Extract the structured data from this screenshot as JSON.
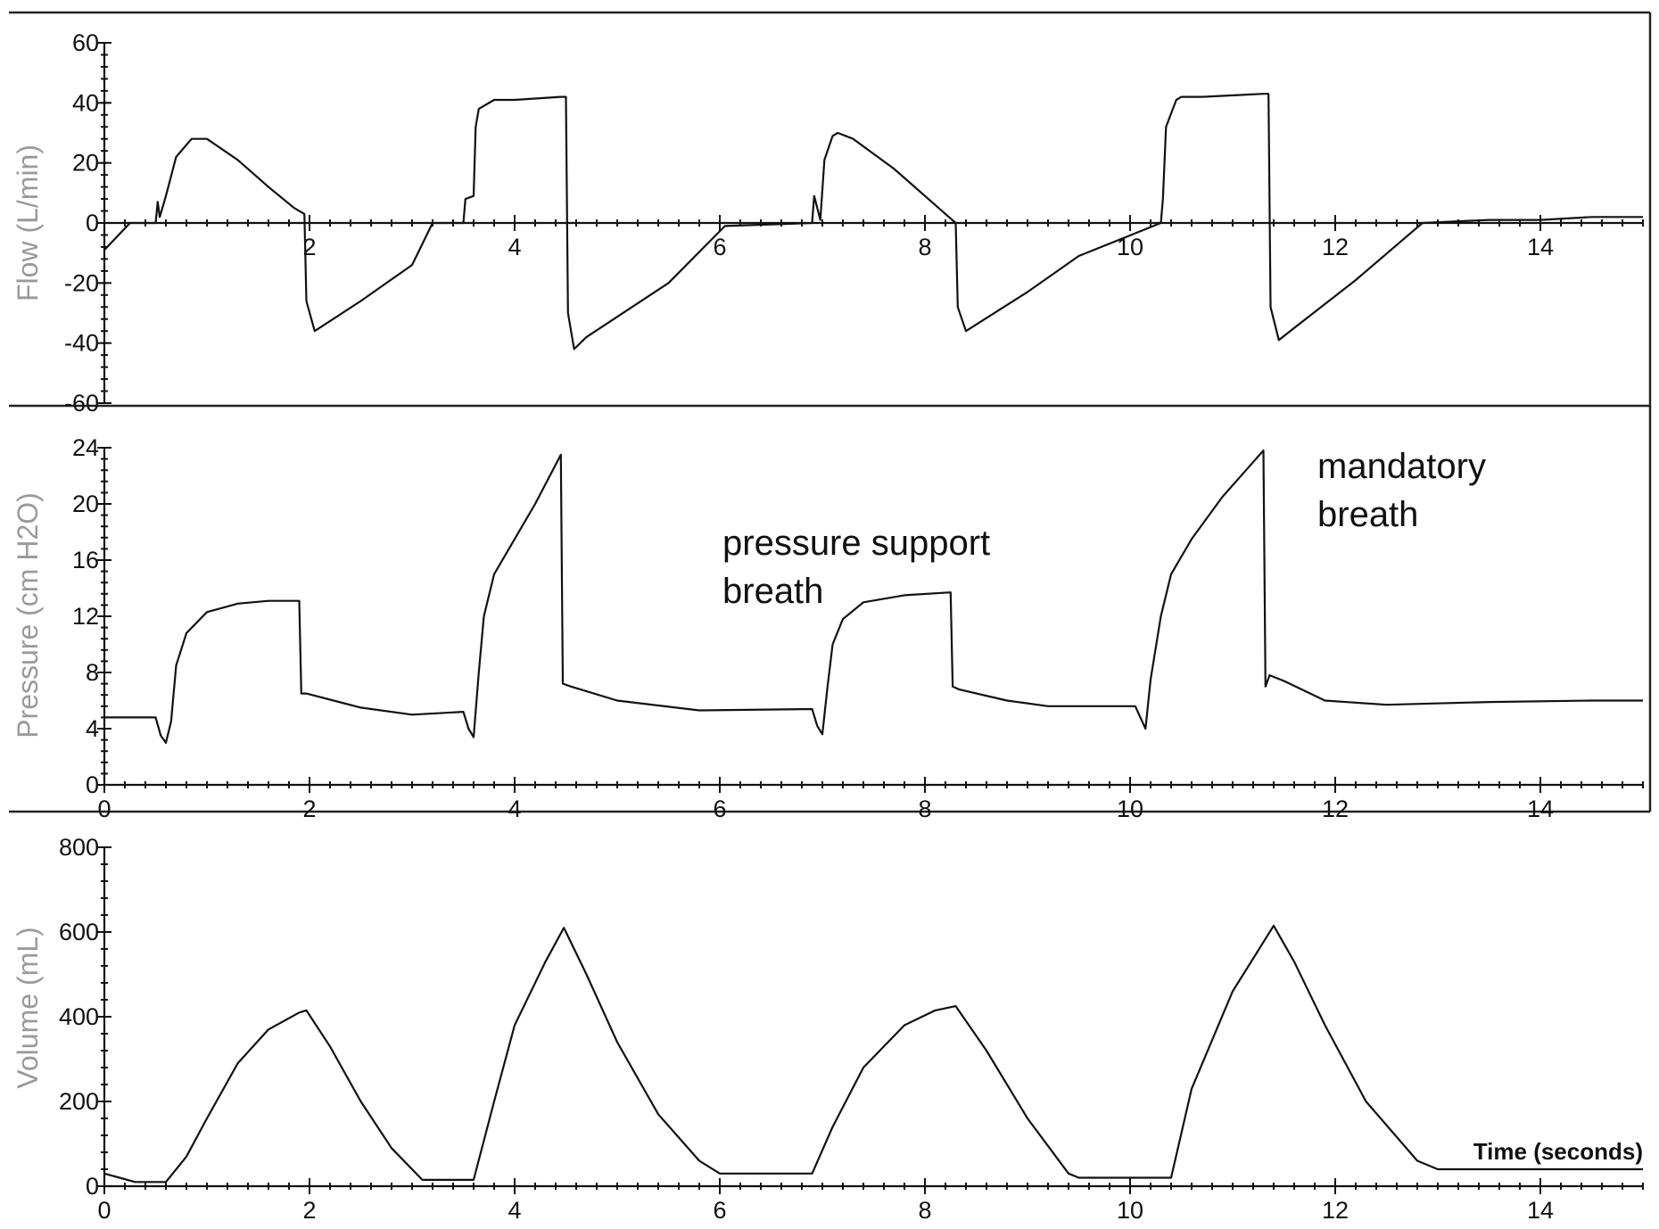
{
  "chart_data": [
    {
      "type": "line",
      "ylabel": "Flow (L/min)",
      "xlim": [
        0,
        15
      ],
      "ylim": [
        -60,
        60
      ],
      "yticks": [
        60,
        40,
        20,
        0,
        -20,
        -40,
        -60
      ],
      "xticks": [
        2,
        4,
        6,
        8,
        10,
        12,
        14
      ],
      "grid": false,
      "series": [
        {
          "x": [
            0,
            0.25,
            0.5,
            0.52,
            0.54,
            0.6,
            0.7,
            0.85,
            1.0,
            1.3,
            1.6,
            1.85,
            1.95,
            1.97,
            2.05,
            2.5,
            3.0,
            3.2,
            3.5,
            3.52,
            3.6,
            3.62,
            3.65,
            3.8,
            4.0,
            4.45,
            4.5,
            4.52,
            4.58,
            4.7,
            5.5,
            6.05,
            6.9,
            6.92,
            6.95,
            6.98,
            7.02,
            7.1,
            7.15,
            7.3,
            7.7,
            8.0,
            8.2,
            8.3,
            8.32,
            8.4,
            9.0,
            9.5,
            10.3,
            10.32,
            10.35,
            10.45,
            10.5,
            10.7,
            11.3,
            11.35,
            11.37,
            11.45,
            11.6,
            12.2,
            12.85,
            13.5,
            14.0,
            14.5,
            15.0
          ],
          "y": [
            -9,
            0,
            0,
            7,
            2,
            9,
            22,
            28,
            28,
            21,
            12,
            5,
            3,
            -26,
            -36,
            -26,
            -14,
            0,
            0,
            8,
            9,
            32,
            38,
            41,
            41,
            42,
            42,
            -30,
            -42,
            -38,
            -20,
            -1,
            0,
            9,
            5,
            1,
            21,
            29,
            30,
            28,
            18,
            9,
            3,
            0,
            -28,
            -36,
            -23,
            -11,
            0,
            8,
            32,
            41,
            42,
            42,
            43,
            43,
            -28,
            -39,
            -35,
            -19,
            0,
            1,
            1,
            2,
            2
          ]
        }
      ]
    },
    {
      "type": "line",
      "ylabel": "Pressure (cm H2O)",
      "xlim": [
        0,
        15
      ],
      "ylim": [
        0,
        24
      ],
      "yticks": [
        24,
        20,
        16,
        12,
        8,
        4,
        0
      ],
      "xticks": [
        0,
        2,
        4,
        6,
        8,
        10,
        12,
        14
      ],
      "grid": false,
      "series": [
        {
          "x": [
            0,
            0.5,
            0.55,
            0.6,
            0.65,
            0.7,
            0.8,
            1.0,
            1.3,
            1.6,
            1.9,
            1.92,
            1.97,
            2.5,
            3.0,
            3.5,
            3.55,
            3.6,
            3.65,
            3.7,
            3.8,
            4.0,
            4.2,
            4.45,
            4.47,
            4.55,
            5.0,
            5.8,
            6.9,
            6.95,
            7.0,
            7.05,
            7.1,
            7.2,
            7.4,
            7.8,
            8.25,
            8.27,
            8.33,
            8.8,
            9.2,
            10.05,
            10.1,
            10.15,
            10.2,
            10.3,
            10.4,
            10.6,
            10.9,
            11.3,
            11.32,
            11.36,
            11.5,
            11.9,
            12.5,
            13.5,
            14.5,
            15.0
          ],
          "y": [
            4.8,
            4.8,
            3.5,
            3.0,
            4.5,
            8.5,
            10.8,
            12.3,
            12.9,
            13.1,
            13.1,
            6.5,
            6.5,
            5.5,
            5.0,
            5.2,
            4.0,
            3.4,
            8.0,
            12.0,
            15.0,
            17.5,
            20.0,
            23.5,
            7.2,
            7.0,
            6.0,
            5.3,
            5.4,
            4.2,
            3.6,
            7.0,
            10.0,
            11.8,
            13.0,
            13.5,
            13.7,
            7.0,
            6.8,
            6.0,
            5.6,
            5.6,
            4.8,
            4.0,
            7.5,
            12.0,
            15.0,
            17.5,
            20.5,
            23.8,
            7.0,
            7.8,
            7.4,
            6.0,
            5.7,
            5.9,
            6.0,
            6.0
          ]
        }
      ]
    },
    {
      "type": "line",
      "ylabel": "Volume (mL)",
      "xlabel": "Time (seconds)",
      "xlim": [
        0,
        15
      ],
      "ylim": [
        0,
        800
      ],
      "yticks": [
        800,
        600,
        400,
        200,
        0
      ],
      "xticks": [
        0,
        2,
        4,
        6,
        8,
        10,
        12,
        14
      ],
      "grid": false,
      "series": [
        {
          "x": [
            0,
            0.3,
            0.6,
            0.8,
            1.0,
            1.3,
            1.6,
            1.9,
            1.97,
            2.2,
            2.5,
            2.8,
            3.1,
            3.6,
            3.8,
            4.0,
            4.3,
            4.48,
            4.7,
            5.0,
            5.4,
            5.8,
            6.0,
            6.9,
            7.1,
            7.4,
            7.8,
            8.1,
            8.3,
            8.6,
            9.0,
            9.4,
            9.5,
            10.4,
            10.6,
            11.0,
            11.4,
            11.6,
            11.9,
            12.3,
            12.8,
            13.0,
            15.0
          ],
          "y": [
            30,
            10,
            10,
            70,
            160,
            290,
            370,
            410,
            415,
            330,
            200,
            90,
            15,
            15,
            200,
            380,
            530,
            610,
            500,
            340,
            170,
            60,
            30,
            30,
            140,
            280,
            380,
            415,
            425,
            320,
            160,
            30,
            20,
            20,
            230,
            460,
            615,
            530,
            380,
            200,
            60,
            40,
            40
          ]
        }
      ]
    }
  ],
  "annotations": {
    "pressure_support": [
      "pressure support",
      "breath"
    ],
    "mandatory": [
      "mandatory",
      "breath"
    ]
  }
}
